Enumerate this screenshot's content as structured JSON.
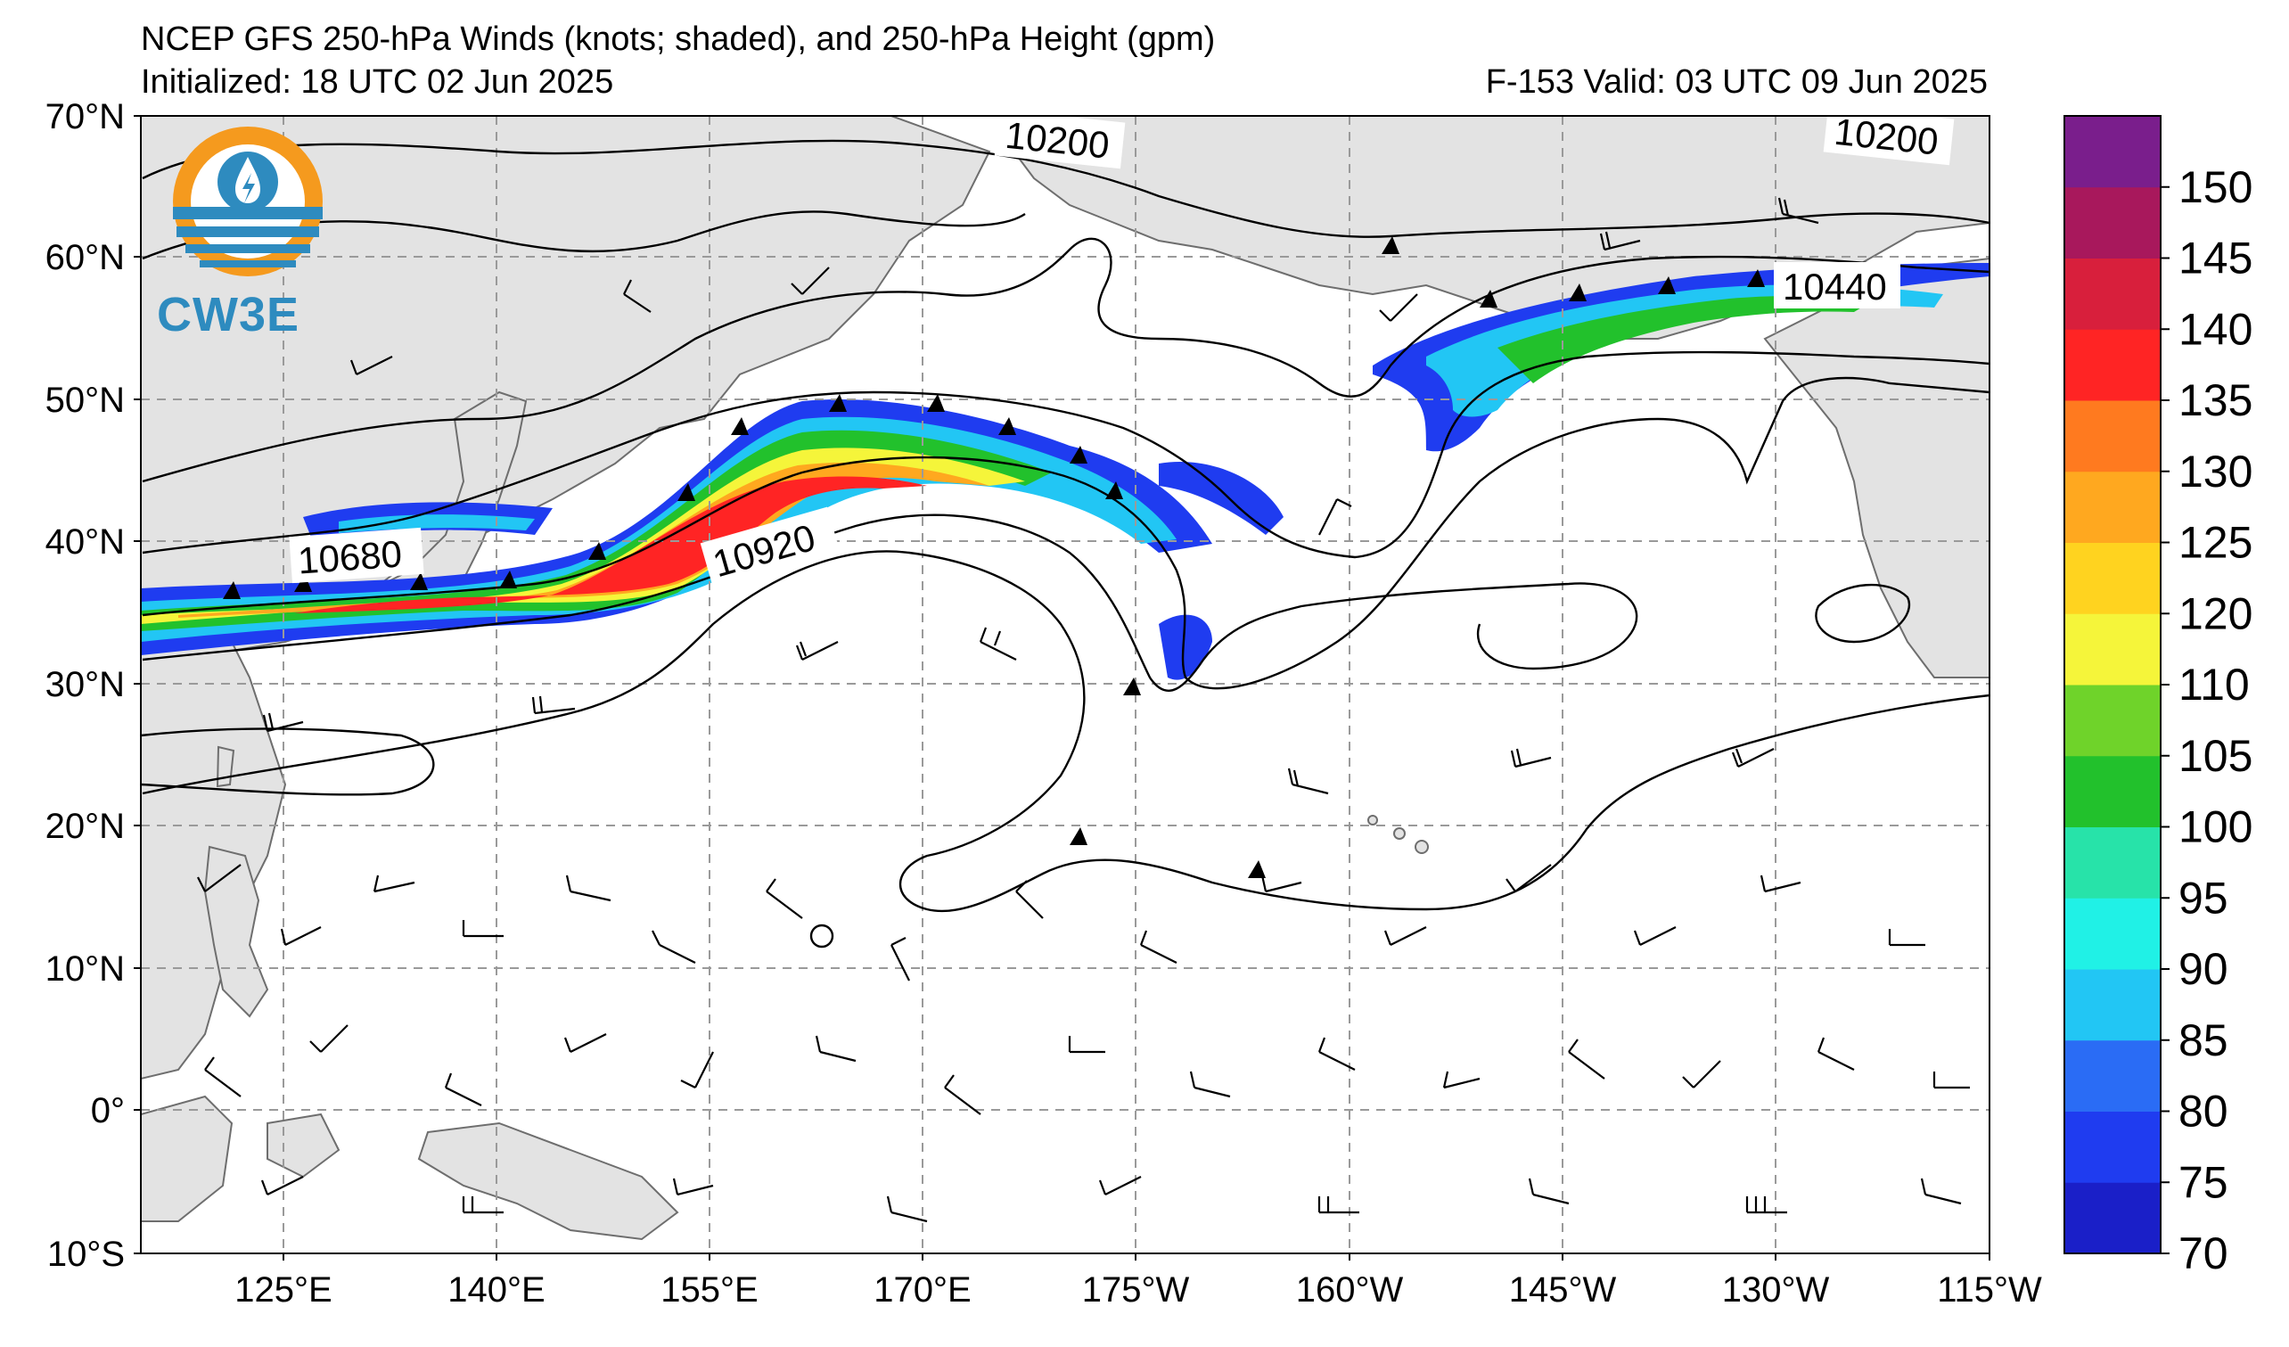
{
  "header": {
    "title": "NCEP GFS 250-hPa Winds (knots; shaded), and 250-hPa Height (gpm)",
    "initialized": "Initialized: 18 UTC 02 Jun 2025",
    "valid": "F-153  Valid: 03 UTC 09 Jun 2025"
  },
  "logo": {
    "text": "CW3E"
  },
  "axes": {
    "lat_labels": [
      "70°N",
      "60°N",
      "50°N",
      "40°N",
      "30°N",
      "20°N",
      "10°N",
      "0°",
      "10°S"
    ],
    "lon_labels": [
      "125°E",
      "140°E",
      "155°E",
      "170°E",
      "175°W",
      "160°W",
      "145°W",
      "130°W",
      "115°W"
    ]
  },
  "colorbar": {
    "labels": [
      "70",
      "75",
      "80",
      "85",
      "90",
      "95",
      "100",
      "105",
      "110",
      "120",
      "125",
      "130",
      "135",
      "140",
      "145",
      "150"
    ],
    "colors": [
      "#1a1fc8",
      "#1f3cf0",
      "#2a6cf5",
      "#22c6f4",
      "#20f1e6",
      "#27e3a9",
      "#22c12c",
      "#6fd32a",
      "#f5f53a",
      "#ffd31f",
      "#ffa81f",
      "#ff7a1f",
      "#ff2424",
      "#d81f3c",
      "#a8185c",
      "#7a1e8c"
    ]
  },
  "contours": {
    "labels": [
      "10200",
      "10200",
      "10440",
      "10680",
      "10920"
    ]
  },
  "colors": {
    "land": "#e3e3e3",
    "coast": "#6e6e6e",
    "grid": "#9a9a9a",
    "contour": "#000000"
  }
}
